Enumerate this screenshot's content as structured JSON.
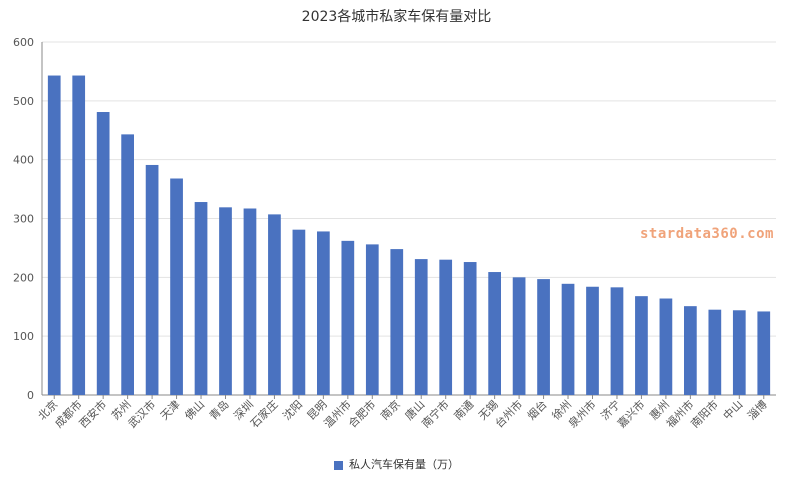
{
  "chart_data": {
    "type": "bar",
    "title": "2023各城市私家车保有量对比",
    "categories": [
      "北京",
      "成都市",
      "西安市",
      "苏州",
      "武汉市",
      "天津",
      "佛山",
      "青岛",
      "深圳",
      "石家庄",
      "沈阳",
      "昆明",
      "温州市",
      "合肥市",
      "南京",
      "唐山",
      "南宁市",
      "南通",
      "无锡",
      "台州市",
      "烟台",
      "徐州",
      "泉州市",
      "济宁",
      "嘉兴市",
      "惠州",
      "福州市",
      "南阳市",
      "中山",
      "淄博"
    ],
    "series": [
      {
        "name": "私人汽车保有量（万）",
        "color": "#4a72c0",
        "values": [
          543,
          543,
          481,
          443,
          391,
          368,
          328,
          319,
          317,
          307,
          281,
          278,
          262,
          256,
          248,
          231,
          230,
          226,
          209,
          200,
          197,
          189,
          184,
          183,
          168,
          164,
          151,
          145,
          144,
          142
        ]
      }
    ],
    "ylim": [
      0,
      600
    ],
    "yticks": [
      0,
      100,
      200,
      300,
      400,
      500,
      600
    ],
    "grid": true,
    "legend_position": "bottom-center"
  },
  "watermark": "stardata360.com"
}
